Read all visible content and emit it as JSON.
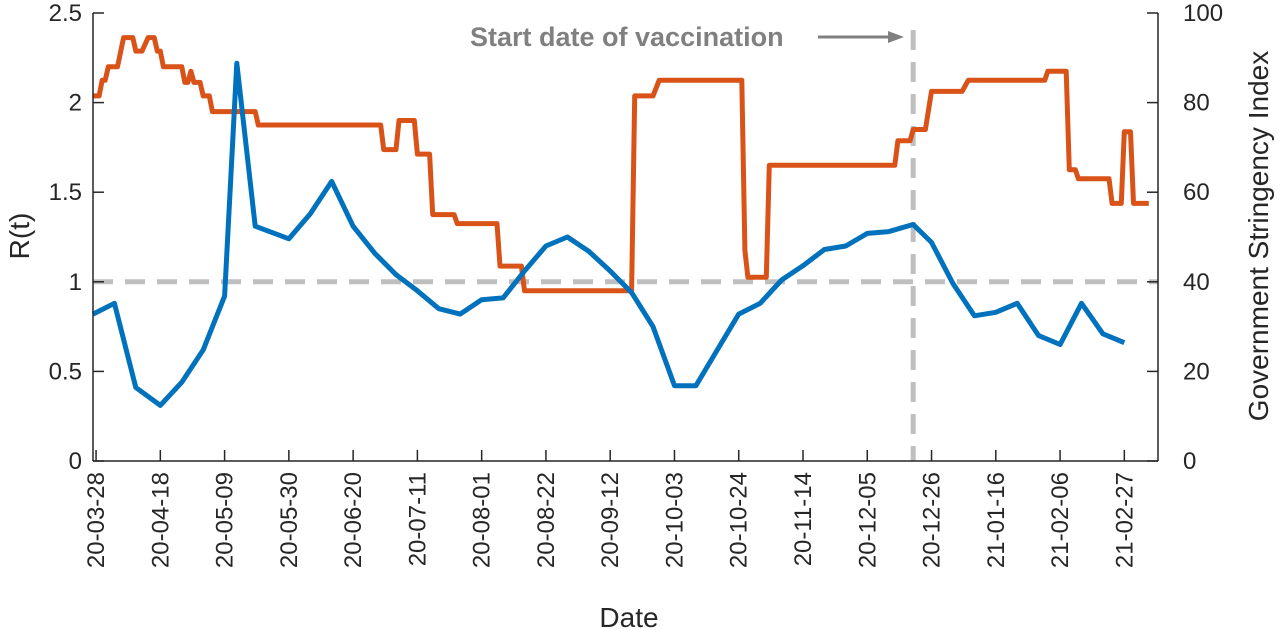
{
  "chart_data": {
    "type": "line",
    "xlabel": "Date",
    "ylabel": "R(t)",
    "ylabel_right": "Government Stringency Index",
    "ylim": [
      0,
      2.5
    ],
    "ylim_right": [
      0,
      100
    ],
    "y_ticks": [
      "0",
      "0.5",
      "1",
      "1.5",
      "2",
      "2.5"
    ],
    "y_ticks_right": [
      "0",
      "20",
      "40",
      "60",
      "80",
      "100"
    ],
    "x_ticks": [
      "20-03-28",
      "20-04-18",
      "20-05-09",
      "20-05-30",
      "20-06-20",
      "20-07-11",
      "20-08-01",
      "20-08-22",
      "20-09-12",
      "20-10-03",
      "20-10-24",
      "20-11-14",
      "20-12-05",
      "20-12-26",
      "21-01-16",
      "21-02-06",
      "21-02-27"
    ],
    "x_range": [
      "2020-03-27",
      "2021-03-10"
    ],
    "reference_line_y": 1,
    "vaccination_date": "2020-12-20",
    "annotation": "Start date of vaccination",
    "colors": {
      "rt": "#0072BD",
      "stringency": "#D95319",
      "reference": "#BFBFBF",
      "annotation": "#808080"
    },
    "series": [
      {
        "axis": "left",
        "color": "#0072BD",
        "points": [
          [
            "2020-03-27",
            0.82
          ],
          [
            "2020-04-03",
            0.88
          ],
          [
            "2020-04-10",
            0.41
          ],
          [
            "2020-04-18",
            0.31
          ],
          [
            "2020-04-25",
            0.44
          ],
          [
            "2020-05-02",
            0.62
          ],
          [
            "2020-05-09",
            0.92
          ],
          [
            "2020-05-13",
            2.22
          ],
          [
            "2020-05-19",
            1.31
          ],
          [
            "2020-05-30",
            1.24
          ],
          [
            "2020-06-06",
            1.38
          ],
          [
            "2020-06-13",
            1.56
          ],
          [
            "2020-06-20",
            1.31
          ],
          [
            "2020-06-27",
            1.16
          ],
          [
            "2020-07-04",
            1.04
          ],
          [
            "2020-07-11",
            0.95
          ],
          [
            "2020-07-18",
            0.85
          ],
          [
            "2020-07-25",
            0.82
          ],
          [
            "2020-08-01",
            0.9
          ],
          [
            "2020-08-08",
            0.91
          ],
          [
            "2020-08-15",
            1.06
          ],
          [
            "2020-08-22",
            1.2
          ],
          [
            "2020-08-29",
            1.25
          ],
          [
            "2020-09-05",
            1.17
          ],
          [
            "2020-09-12",
            1.06
          ],
          [
            "2020-09-19",
            0.94
          ],
          [
            "2020-09-26",
            0.75
          ],
          [
            "2020-10-03",
            0.42
          ],
          [
            "2020-10-10",
            0.42
          ],
          [
            "2020-10-17",
            0.62
          ],
          [
            "2020-10-24",
            0.82
          ],
          [
            "2020-10-31",
            0.88
          ],
          [
            "2020-11-07",
            1.01
          ],
          [
            "2020-11-14",
            1.09
          ],
          [
            "2020-11-21",
            1.18
          ],
          [
            "2020-11-28",
            1.2
          ],
          [
            "2020-12-05",
            1.27
          ],
          [
            "2020-12-12",
            1.28
          ],
          [
            "2020-12-20",
            1.32
          ],
          [
            "2020-12-26",
            1.22
          ],
          [
            "2021-01-02",
            0.99
          ],
          [
            "2021-01-09",
            0.81
          ],
          [
            "2021-01-16",
            0.83
          ],
          [
            "2021-01-23",
            0.88
          ],
          [
            "2021-01-30",
            0.7
          ],
          [
            "2021-02-06",
            0.65
          ],
          [
            "2021-02-13",
            0.88
          ],
          [
            "2021-02-20",
            0.71
          ],
          [
            "2021-02-27",
            0.66
          ]
        ]
      },
      {
        "axis": "right",
        "color": "#D95319",
        "points": [
          [
            "2020-03-27",
            81.5
          ],
          [
            "2020-03-29",
            81.5
          ],
          [
            "2020-03-30",
            85.0
          ],
          [
            "2020-03-31",
            85.0
          ],
          [
            "2020-04-01",
            88.0
          ],
          [
            "2020-04-04",
            88.0
          ],
          [
            "2020-04-06",
            94.5
          ],
          [
            "2020-04-09",
            94.5
          ],
          [
            "2020-04-10",
            91.5
          ],
          [
            "2020-04-12",
            91.5
          ],
          [
            "2020-04-14",
            94.5
          ],
          [
            "2020-04-16",
            94.5
          ],
          [
            "2020-04-17",
            91.5
          ],
          [
            "2020-04-18",
            91.5
          ],
          [
            "2020-04-19",
            88.0
          ],
          [
            "2020-04-25",
            88.0
          ],
          [
            "2020-04-26",
            84.5
          ],
          [
            "2020-04-27",
            84.5
          ],
          [
            "2020-04-28",
            87.0
          ],
          [
            "2020-04-29",
            84.5
          ],
          [
            "2020-05-01",
            84.5
          ],
          [
            "2020-05-02",
            81.5
          ],
          [
            "2020-05-04",
            81.5
          ],
          [
            "2020-05-05",
            78.0
          ],
          [
            "2020-05-19",
            78.0
          ],
          [
            "2020-05-20",
            75.0
          ],
          [
            "2020-06-29",
            75.0
          ],
          [
            "2020-06-30",
            69.5
          ],
          [
            "2020-07-04",
            69.5
          ],
          [
            "2020-07-05",
            76.0
          ],
          [
            "2020-07-10",
            76.0
          ],
          [
            "2020-07-11",
            68.5
          ],
          [
            "2020-07-15",
            68.5
          ],
          [
            "2020-07-16",
            55.0
          ],
          [
            "2020-07-23",
            55.0
          ],
          [
            "2020-07-24",
            53.0
          ],
          [
            "2020-08-06",
            53.0
          ],
          [
            "2020-08-07",
            43.5
          ],
          [
            "2020-08-14",
            43.5
          ],
          [
            "2020-08-15",
            38.0
          ],
          [
            "2020-09-19",
            38.0
          ],
          [
            "2020-09-20",
            81.5
          ],
          [
            "2020-09-26",
            81.5
          ],
          [
            "2020-09-28",
            85.0
          ],
          [
            "2020-10-25",
            85.0
          ],
          [
            "2020-10-26",
            47.0
          ],
          [
            "2020-10-27",
            41.0
          ],
          [
            "2020-11-02",
            41.0
          ],
          [
            "2020-11-03",
            66.0
          ],
          [
            "2020-12-14",
            66.0
          ],
          [
            "2020-12-15",
            71.5
          ],
          [
            "2020-12-17",
            71.5
          ],
          [
            "2020-12-19",
            71.5
          ],
          [
            "2020-12-20",
            74.0
          ],
          [
            "2020-12-24",
            74.0
          ],
          [
            "2020-12-26",
            82.5
          ],
          [
            "2021-01-05",
            82.5
          ],
          [
            "2021-01-07",
            85.0
          ],
          [
            "2021-02-01",
            85.0
          ],
          [
            "2021-02-02",
            87.0
          ],
          [
            "2021-02-08",
            87.0
          ],
          [
            "2021-02-09",
            65.0
          ],
          [
            "2021-02-11",
            65.0
          ],
          [
            "2021-02-12",
            63.0
          ],
          [
            "2021-02-22",
            63.0
          ],
          [
            "2021-02-23",
            57.5
          ],
          [
            "2021-02-26",
            57.5
          ],
          [
            "2021-02-27",
            73.5
          ],
          [
            "2021-03-01",
            73.5
          ],
          [
            "2021-03-02",
            57.5
          ],
          [
            "2021-03-07",
            57.5
          ]
        ]
      }
    ]
  }
}
